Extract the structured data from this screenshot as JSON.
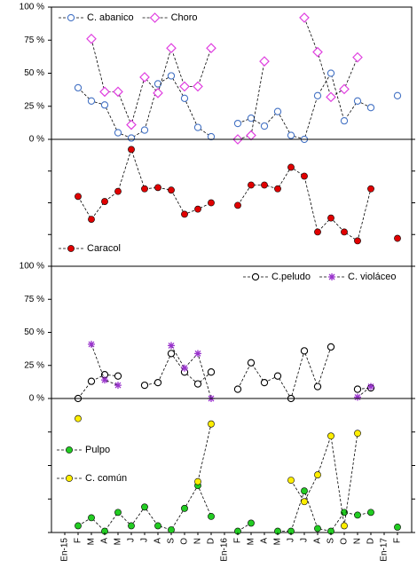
{
  "chart_data": [
    {
      "type": "line",
      "ylim": [
        0,
        100
      ],
      "legend": "upper left",
      "yticks": [
        {
          "value": 0,
          "label": "0 %"
        },
        {
          "value": 25,
          "label": "25 %"
        },
        {
          "value": 50,
          "label": "50 %"
        },
        {
          "value": 75,
          "label": "75 %"
        },
        {
          "value": 100,
          "label": "100 %"
        }
      ],
      "series": [
        {
          "name": "C. abanico",
          "color": "#4472c4",
          "marker": "circle",
          "filled": false,
          "values": [
            null,
            39,
            29,
            26,
            5,
            1,
            7,
            42,
            48,
            31,
            9,
            2,
            null,
            12,
            16,
            10,
            21,
            3,
            0,
            33,
            50,
            14,
            29,
            24,
            null,
            33
          ]
        },
        {
          "name": "Choro",
          "color": "#e040e0",
          "marker": "diamond",
          "filled": false,
          "values": [
            null,
            null,
            76,
            36,
            36,
            11,
            47,
            35,
            69,
            40,
            40,
            69,
            null,
            0,
            3,
            59,
            null,
            null,
            92,
            66,
            32,
            38,
            62,
            null,
            null,
            null
          ]
        }
      ]
    },
    {
      "type": "line",
      "ylim": [
        0,
        100
      ],
      "legend": "lower left",
      "yticks": [
        0,
        25,
        50,
        75,
        100
      ],
      "series": [
        {
          "name": "Caracol",
          "color": "#e00000",
          "marker": "circle",
          "filled": true,
          "values": [
            null,
            55,
            37,
            51,
            59,
            92,
            61,
            62,
            60,
            41,
            45,
            50,
            null,
            48,
            64,
            64,
            61,
            78,
            71,
            27,
            38,
            27,
            20,
            61,
            null,
            22
          ]
        }
      ]
    },
    {
      "type": "line",
      "ylim": [
        0,
        100
      ],
      "legend": "upper right",
      "yticks": [
        {
          "value": 0,
          "label": "0 %"
        },
        {
          "value": 25,
          "label": "25 %"
        },
        {
          "value": 50,
          "label": "50 %"
        },
        {
          "value": 75,
          "label": "75 %"
        },
        {
          "value": 100,
          "label": "100 %"
        }
      ],
      "series": [
        {
          "name": "C.peludo",
          "color": "#000000",
          "marker": "circle",
          "filled": false,
          "values": [
            null,
            0,
            13,
            18,
            17,
            null,
            10,
            12,
            34,
            20,
            11,
            20,
            null,
            7,
            27,
            12,
            17,
            0,
            36,
            9,
            39,
            null,
            7,
            8,
            null,
            null
          ]
        },
        {
          "name": "C. violáceo",
          "color": "#9933cc",
          "marker": "star",
          "filled": false,
          "values": [
            null,
            null,
            41,
            14,
            10,
            null,
            null,
            null,
            40,
            23,
            34,
            0,
            null,
            null,
            null,
            null,
            null,
            null,
            null,
            null,
            null,
            null,
            1,
            9,
            null,
            null
          ]
        }
      ]
    },
    {
      "type": "line",
      "ylim": [
        0,
        100
      ],
      "legend": "center left",
      "yticks": [
        0,
        25,
        50,
        75,
        100
      ],
      "categories": [
        "En-15",
        "F",
        "M",
        "A",
        "M",
        "J",
        "J",
        "A",
        "S",
        "O",
        "N",
        "D",
        "En-16",
        "F",
        "M",
        "A",
        "M",
        "J",
        "J",
        "A",
        "S",
        "O",
        "N",
        "D",
        "En-17",
        "F"
      ],
      "series": [
        {
          "name": "Pulpo",
          "color": "#22cc22",
          "marker": "circle",
          "filled": true,
          "values": [
            null,
            5,
            11,
            1,
            15,
            5,
            19,
            5,
            2,
            18,
            35,
            12,
            null,
            1,
            7,
            null,
            1,
            1,
            31,
            3,
            1,
            15,
            13,
            15,
            null,
            4
          ]
        },
        {
          "name": "C. común",
          "color": "#ffee00",
          "marker": "circle",
          "filled": true,
          "values": [
            null,
            85,
            null,
            null,
            null,
            null,
            null,
            null,
            null,
            null,
            38,
            81,
            null,
            null,
            null,
            null,
            null,
            39,
            23,
            43,
            72,
            5,
            74,
            null,
            null,
            null
          ]
        }
      ]
    }
  ]
}
